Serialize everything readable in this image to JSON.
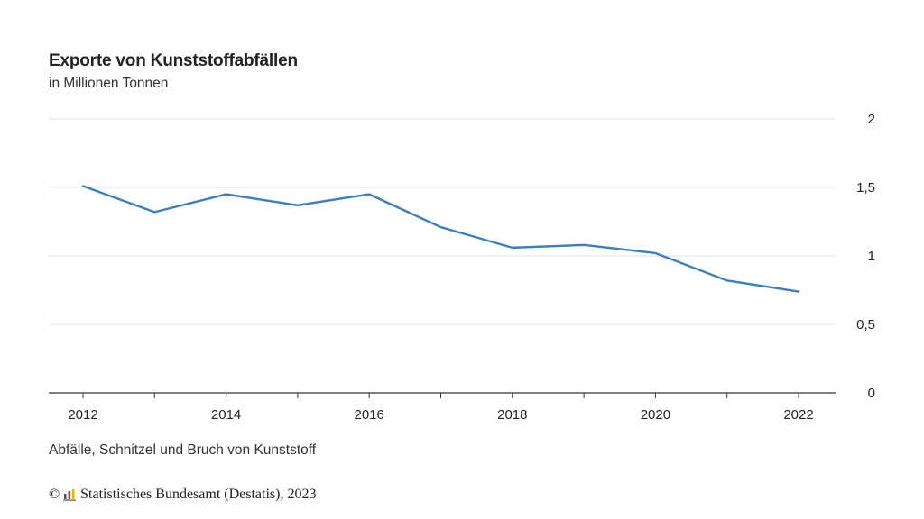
{
  "header": {
    "title": "Exporte von Kunststoffabfällen",
    "subtitle": "in Millionen Tonnen"
  },
  "footer": {
    "note": "Abfälle, Schnitzel und Bruch von Kunststoff",
    "copyright_symbol": "©",
    "source": "Statistisches Bundesamt (Destatis), 2023"
  },
  "chart_data": {
    "type": "line",
    "title": "Exporte von Kunststoffabfällen",
    "subtitle": "in Millionen Tonnen",
    "x": [
      2012,
      2013,
      2014,
      2015,
      2016,
      2017,
      2018,
      2019,
      2020,
      2021,
      2022
    ],
    "x_tick_labels": [
      "2012",
      "2014",
      "2016",
      "2018",
      "2020",
      "2022"
    ],
    "y_tick_labels": [
      "0",
      "0,5",
      "1",
      "1,5",
      "2"
    ],
    "ylim": [
      0,
      2
    ],
    "yticks": [
      0,
      0.5,
      1,
      1.5,
      2
    ],
    "y_axis_side": "right",
    "grid": true,
    "series": [
      {
        "values": [
          1.51,
          1.32,
          1.45,
          1.37,
          1.45,
          1.21,
          1.06,
          1.08,
          1.02,
          0.82,
          0.74
        ],
        "color": "#3a7fc1"
      }
    ]
  },
  "colors": {
    "line": "#3a7fc1",
    "grid": "#e3e3e3",
    "axis": "#333333",
    "logo_red": "#d62718",
    "logo_yellow": "#e8b400",
    "logo_gray": "#555555"
  },
  "icons": {
    "logo": "destatis-logo-icon"
  }
}
